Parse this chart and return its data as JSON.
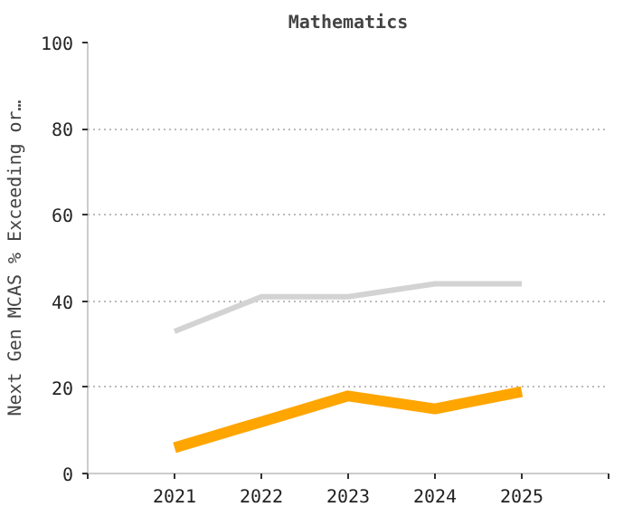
{
  "chart_data": {
    "type": "line",
    "title": "Mathematics",
    "ylabel": "Next Gen MCAS % Exceeding or…",
    "x": [
      2021,
      2022,
      2023,
      2024,
      2025
    ],
    "series": [
      {
        "color": "#d3d3d3",
        "values": [
          33,
          41,
          41,
          44,
          44
        ]
      },
      {
        "color": "#ffa500",
        "values": [
          6,
          12,
          18,
          15,
          19
        ]
      }
    ],
    "xlim": [
      2020,
      2026
    ],
    "xticks": [
      {
        "value": 2020,
        "label": null
      },
      2021,
      2022,
      2023,
      2024,
      2025,
      {
        "value": 2026,
        "label": null
      }
    ],
    "ylim": [
      0,
      100
    ],
    "yticks": [
      0,
      20,
      40,
      60,
      80,
      100
    ],
    "grid": "y",
    "marker": "none",
    "line_style": "solid"
  }
}
